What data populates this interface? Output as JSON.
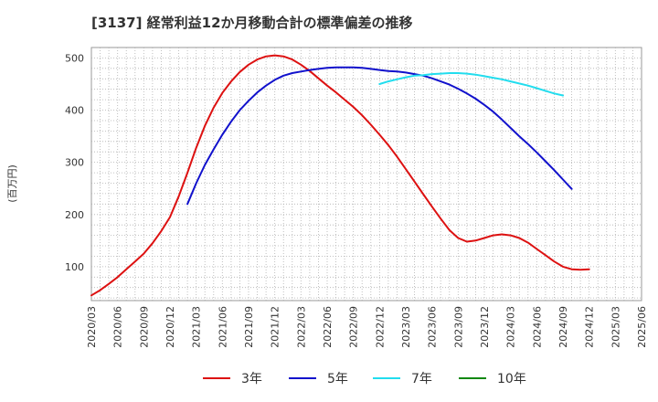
{
  "chart_data": {
    "type": "line",
    "title": "[3137]  経常利益12か月移動合計の標準偏差の推移",
    "ylabel": "(百万円)",
    "xlabel": "",
    "ylim": [
      35,
      520
    ],
    "yticks": [
      100,
      200,
      300,
      400,
      500
    ],
    "x_start": "2020-03",
    "x_end": "2025-06",
    "xtick_labels": [
      "2020/03",
      "2020/06",
      "2020/09",
      "2020/12",
      "2021/03",
      "2021/06",
      "2021/09",
      "2021/12",
      "2022/03",
      "2022/06",
      "2022/09",
      "2022/12",
      "2023/03",
      "2023/06",
      "2023/09",
      "2023/12",
      "2024/03",
      "2024/06",
      "2024/09",
      "2024/12",
      "2025/03",
      "2025/06"
    ],
    "grid": true,
    "legend_position": "bottom",
    "series": [
      {
        "name": "3年",
        "color": "#dd1111",
        "points": [
          [
            "2020-03",
            45
          ],
          [
            "2020-04",
            55
          ],
          [
            "2020-05",
            67
          ],
          [
            "2020-06",
            80
          ],
          [
            "2020-07",
            95
          ],
          [
            "2020-08",
            110
          ],
          [
            "2020-09",
            125
          ],
          [
            "2020-10",
            145
          ],
          [
            "2020-11",
            168
          ],
          [
            "2020-12",
            195
          ],
          [
            "2021-01",
            235
          ],
          [
            "2021-02",
            280
          ],
          [
            "2021-03",
            328
          ],
          [
            "2021-04",
            370
          ],
          [
            "2021-05",
            405
          ],
          [
            "2021-06",
            433
          ],
          [
            "2021-07",
            455
          ],
          [
            "2021-08",
            473
          ],
          [
            "2021-09",
            487
          ],
          [
            "2021-10",
            497
          ],
          [
            "2021-11",
            503
          ],
          [
            "2021-12",
            505
          ],
          [
            "2022-01",
            503
          ],
          [
            "2022-02",
            497
          ],
          [
            "2022-03",
            487
          ],
          [
            "2022-04",
            475
          ],
          [
            "2022-05",
            461
          ],
          [
            "2022-06",
            447
          ],
          [
            "2022-07",
            434
          ],
          [
            "2022-08",
            420
          ],
          [
            "2022-09",
            406
          ],
          [
            "2022-10",
            390
          ],
          [
            "2022-11",
            372
          ],
          [
            "2022-12",
            353
          ],
          [
            "2023-01",
            333
          ],
          [
            "2023-02",
            311
          ],
          [
            "2023-03",
            287
          ],
          [
            "2023-04",
            263
          ],
          [
            "2023-05",
            239
          ],
          [
            "2023-06",
            215
          ],
          [
            "2023-07",
            192
          ],
          [
            "2023-08",
            170
          ],
          [
            "2023-09",
            155
          ],
          [
            "2023-10",
            148
          ],
          [
            "2023-11",
            150
          ],
          [
            "2023-12",
            155
          ],
          [
            "2024-01",
            160
          ],
          [
            "2024-02",
            162
          ],
          [
            "2024-03",
            160
          ],
          [
            "2024-04",
            155
          ],
          [
            "2024-05",
            146
          ],
          [
            "2024-06",
            134
          ],
          [
            "2024-07",
            122
          ],
          [
            "2024-08",
            110
          ],
          [
            "2024-09",
            100
          ],
          [
            "2024-10",
            95
          ],
          [
            "2024-11",
            94
          ],
          [
            "2024-12",
            95
          ]
        ]
      },
      {
        "name": "5年",
        "color": "#1111cc",
        "points": [
          [
            "2021-02",
            220
          ],
          [
            "2021-03",
            260
          ],
          [
            "2021-04",
            295
          ],
          [
            "2021-05",
            325
          ],
          [
            "2021-06",
            353
          ],
          [
            "2021-07",
            378
          ],
          [
            "2021-08",
            400
          ],
          [
            "2021-09",
            418
          ],
          [
            "2021-10",
            434
          ],
          [
            "2021-11",
            447
          ],
          [
            "2021-12",
            458
          ],
          [
            "2022-01",
            466
          ],
          [
            "2022-02",
            471
          ],
          [
            "2022-03",
            474
          ],
          [
            "2022-04",
            477
          ],
          [
            "2022-05",
            479
          ],
          [
            "2022-06",
            481
          ],
          [
            "2022-07",
            482
          ],
          [
            "2022-08",
            482
          ],
          [
            "2022-09",
            482
          ],
          [
            "2022-10",
            481
          ],
          [
            "2022-11",
            479
          ],
          [
            "2022-12",
            477
          ],
          [
            "2023-01",
            475
          ],
          [
            "2023-02",
            474
          ],
          [
            "2023-03",
            472
          ],
          [
            "2023-04",
            469
          ],
          [
            "2023-05",
            466
          ],
          [
            "2023-06",
            461
          ],
          [
            "2023-07",
            455
          ],
          [
            "2023-08",
            449
          ],
          [
            "2023-09",
            441
          ],
          [
            "2023-10",
            432
          ],
          [
            "2023-11",
            422
          ],
          [
            "2023-12",
            410
          ],
          [
            "2024-01",
            397
          ],
          [
            "2024-02",
            382
          ],
          [
            "2024-03",
            366
          ],
          [
            "2024-04",
            350
          ],
          [
            "2024-05",
            335
          ],
          [
            "2024-06",
            319
          ],
          [
            "2024-07",
            302
          ],
          [
            "2024-08",
            285
          ],
          [
            "2024-09",
            267
          ],
          [
            "2024-10",
            249
          ]
        ]
      },
      {
        "name": "7年",
        "color": "#22ddee",
        "points": [
          [
            "2022-12",
            450
          ],
          [
            "2023-01",
            455
          ],
          [
            "2023-02",
            459
          ],
          [
            "2023-03",
            463
          ],
          [
            "2023-04",
            466
          ],
          [
            "2023-05",
            467
          ],
          [
            "2023-06",
            469
          ],
          [
            "2023-07",
            470
          ],
          [
            "2023-08",
            471
          ],
          [
            "2023-09",
            471
          ],
          [
            "2023-10",
            470
          ],
          [
            "2023-11",
            468
          ],
          [
            "2023-12",
            465
          ],
          [
            "2024-01",
            462
          ],
          [
            "2024-02",
            459
          ],
          [
            "2024-03",
            455
          ],
          [
            "2024-04",
            451
          ],
          [
            "2024-05",
            447
          ],
          [
            "2024-06",
            442
          ],
          [
            "2024-07",
            437
          ],
          [
            "2024-08",
            432
          ],
          [
            "2024-09",
            428
          ]
        ]
      },
      {
        "name": "10年",
        "color": "#118811",
        "points": []
      }
    ]
  }
}
